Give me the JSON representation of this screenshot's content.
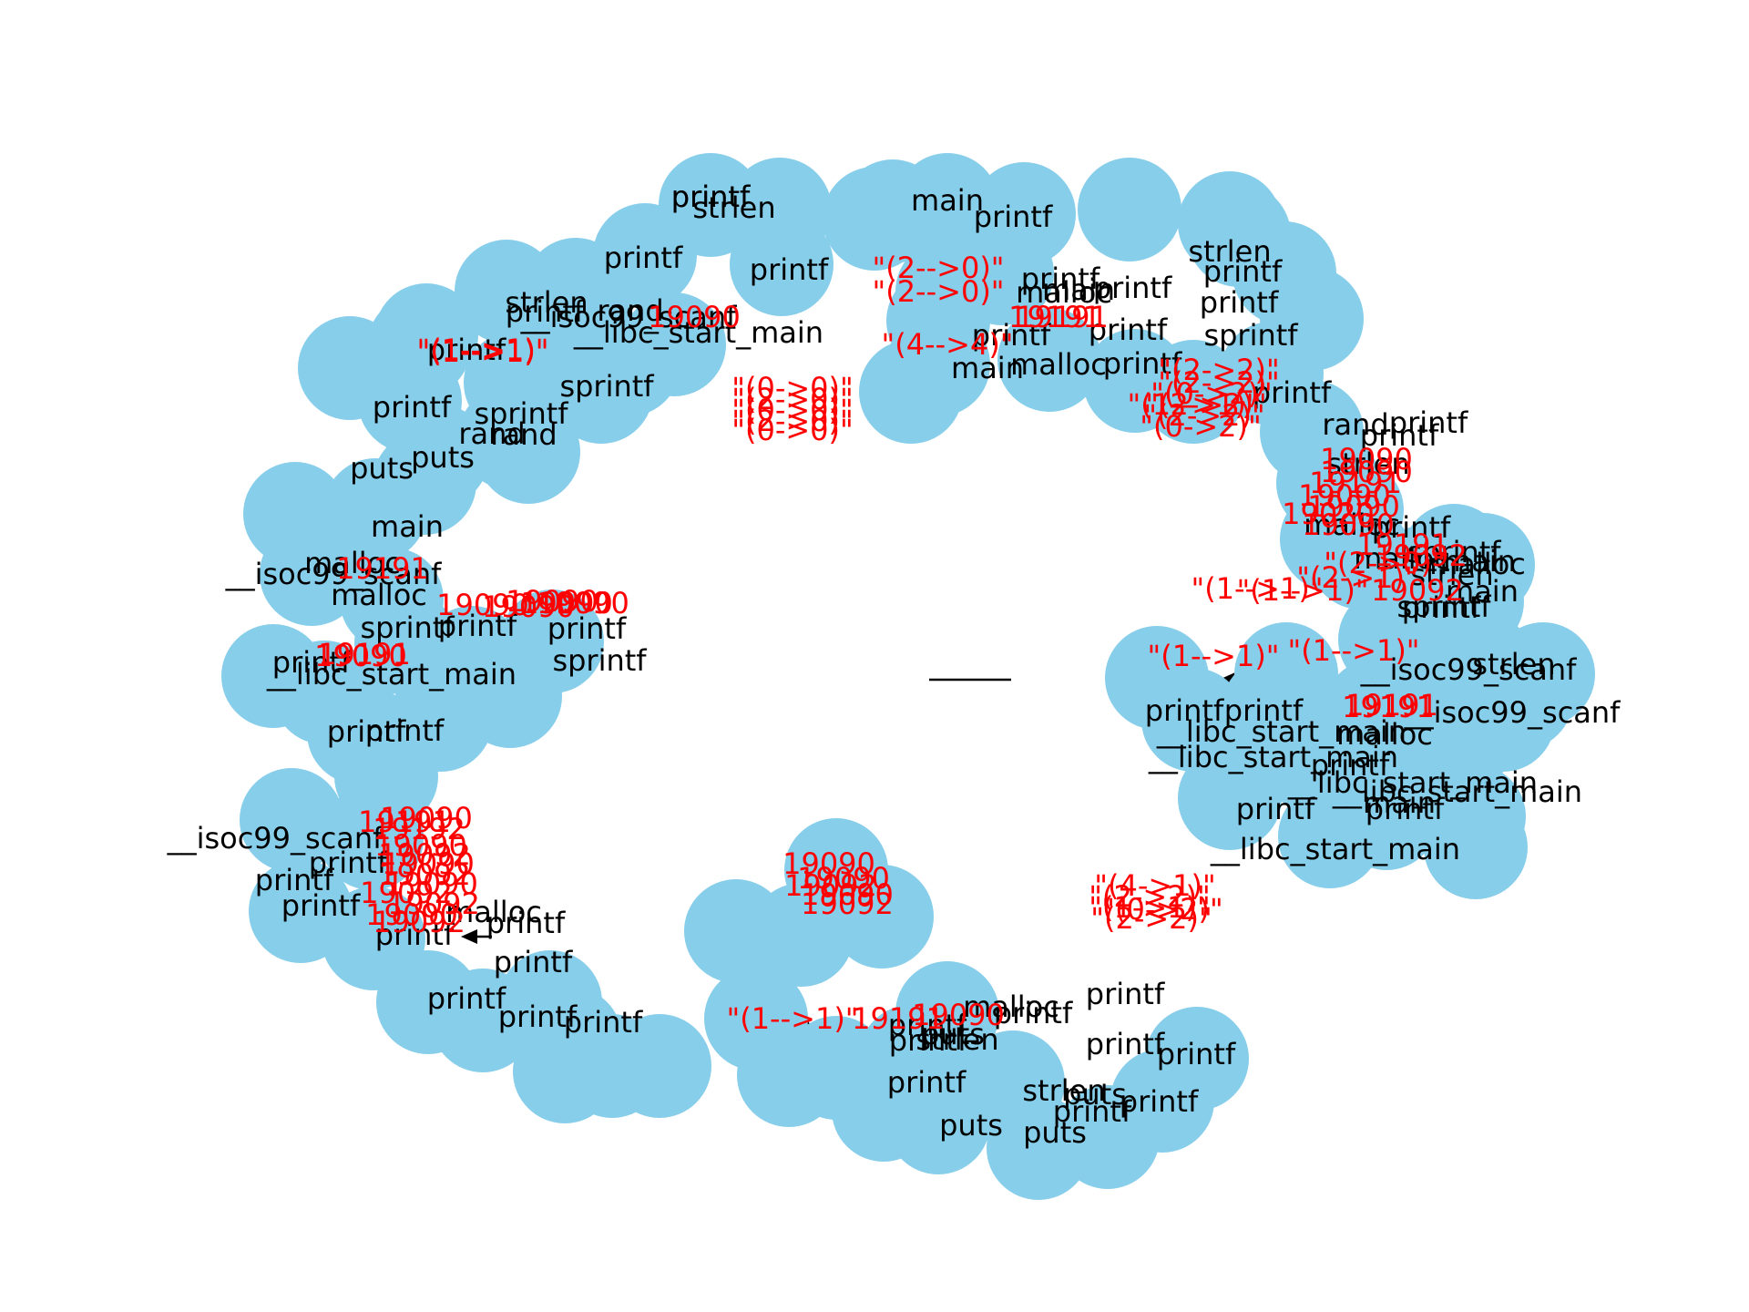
{
  "graph": {
    "label_color": "#ff0000",
    "node_color": "#87ceeb",
    "nodes": [
      {
        "label": "printf"
      },
      {
        "label": "strlen"
      },
      {
        "label": "main"
      },
      {
        "label": "printf"
      },
      {
        "label": "printf"
      },
      {
        "label": "printf"
      },
      {
        "label": "printf"
      },
      {
        "label": "malloc"
      },
      {
        "label": "printf"
      },
      {
        "label": "strlen"
      },
      {
        "label": "printf"
      },
      {
        "label": "printf"
      },
      {
        "label": "sprintf"
      },
      {
        "label": "printf"
      },
      {
        "label": "malloc"
      },
      {
        "label": "printf"
      },
      {
        "label": "printf"
      },
      {
        "label": "main"
      },
      {
        "label": "printf"
      },
      {
        "label": "printf"
      },
      {
        "label": "strlen"
      },
      {
        "label": "printf"
      },
      {
        "label": "rand"
      },
      {
        "label": "__libc_start_main"
      },
      {
        "label": "__isoc99_scanf"
      },
      {
        "label": "main"
      },
      {
        "label": "sprintf"
      },
      {
        "label": "printf"
      },
      {
        "label": "sprintf"
      },
      {
        "label": "rand"
      },
      {
        "label": "rand"
      },
      {
        "label": "puts"
      },
      {
        "label": "puts"
      },
      {
        "label": "main"
      },
      {
        "label": "malloc"
      },
      {
        "label": "malloc"
      },
      {
        "label": "sprintf"
      },
      {
        "label": "printf"
      },
      {
        "label": "printf"
      },
      {
        "label": "sprintf"
      },
      {
        "label": "printf"
      },
      {
        "label": "__isoc99_scanf"
      },
      {
        "label": "__libc_start_main"
      },
      {
        "label": "printf"
      },
      {
        "label": "printf"
      },
      {
        "label": "rand"
      },
      {
        "label": "printf"
      },
      {
        "label": "printf"
      },
      {
        "label": "strlen"
      },
      {
        "label": "malloc"
      },
      {
        "label": "sprintf"
      },
      {
        "label": "printf"
      },
      {
        "label": "malloc"
      },
      {
        "label": "strlen"
      },
      {
        "label": "sprintf"
      },
      {
        "label": "printf"
      },
      {
        "label": "main"
      },
      {
        "label": "malloc"
      },
      {
        "label": "main"
      },
      {
        "label": "malloc"
      },
      {
        "label": "printf"
      },
      {
        "label": "printf"
      },
      {
        "label": "printf"
      },
      {
        "label": "__libc_start_main"
      },
      {
        "label": "__libc_start_main"
      },
      {
        "label": "printf"
      },
      {
        "label": "strlen"
      },
      {
        "label": "__isoc99_scanf"
      },
      {
        "label": "__isoc99_scanf"
      },
      {
        "label": "__libc_start_main"
      },
      {
        "label": "printf"
      },
      {
        "label": "__libc_start_main"
      },
      {
        "label": "__libc_start_main"
      },
      {
        "label": "main"
      },
      {
        "label": "__isoc99_scanf"
      },
      {
        "label": "printf"
      },
      {
        "label": "printf"
      },
      {
        "label": "printf"
      },
      {
        "label": "printf"
      },
      {
        "label": "printf"
      },
      {
        "label": "printf"
      },
      {
        "label": "malloc"
      },
      {
        "label": "printf"
      },
      {
        "label": "printf"
      },
      {
        "label": "printf"
      },
      {
        "label": "printf"
      },
      {
        "label": "malloc"
      },
      {
        "label": "printf"
      },
      {
        "label": "printf"
      },
      {
        "label": "puts"
      },
      {
        "label": "printf"
      },
      {
        "label": "printf"
      },
      {
        "label": "strlen"
      },
      {
        "label": "puts"
      },
      {
        "label": "puts"
      },
      {
        "label": "printf"
      },
      {
        "label": "puts"
      },
      {
        "label": "strlen"
      },
      {
        "label": "printf"
      },
      {
        "label": "printf"
      },
      {
        "label": "printf"
      },
      {
        "label": "printf"
      }
    ],
    "edge_labels": [
      "\"(1-->1)\"",
      "19090",
      "19191",
      "\"(2-->0)\"",
      "\"(2-->0)\"",
      "\"(1-->1)\"",
      "\"(4-->4)\"",
      "19191",
      "\"(0->0)\"",
      "\"(2->0)\"",
      "\"(0->0)\"",
      "\"(2->0)\"",
      "\"(0->0)\"",
      "\"(2->2)\"",
      "\"(2->2)\"",
      "\"(0->2)\"",
      "\"(1-->1)\"",
      "\"(2->2)\"",
      "\"(0->2)\"",
      "\"(2->2)\"",
      "19090",
      "19090",
      "19191",
      "19090",
      "19090",
      "19020",
      "19090",
      "19191",
      "19092",
      "\"(1-->1)\"",
      "\"(1-->1)\"",
      "\"(2->1)\"",
      "\"(2->0)\"",
      "19092",
      "\"(1-->1)\"",
      "\"(1-->1)\"",
      "19191",
      "19191",
      "19191",
      "19090",
      "19090",
      "19090",
      "19090",
      "19090",
      "19191",
      "19090",
      "19090",
      "19191",
      "19192",
      "19090",
      "19092",
      "19090",
      "19092",
      "19090",
      "19092",
      "19092",
      "19090",
      "19092",
      "19090",
      "19090",
      "19092",
      "19090",
      "19092",
      "\"(1-->1)\"",
      "19191",
      "19090",
      "\"(4->1)\"",
      "\"(2->2)\"",
      "\"(1->1)\"",
      "\"(2->2)\"",
      "\"(0->2)\""
    ]
  }
}
